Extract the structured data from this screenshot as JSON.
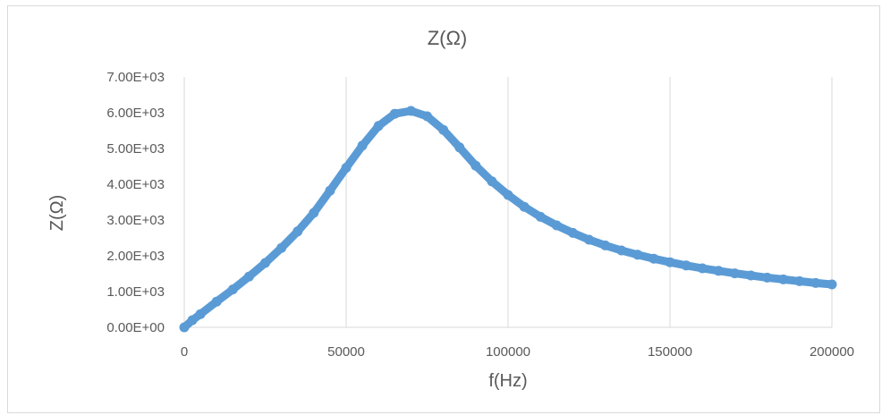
{
  "chart_data": {
    "type": "scatter",
    "title": "Z(Ω)",
    "xlabel": "f(Hz)",
    "ylabel": "Z(Ω)",
    "xlim": [
      0,
      200000
    ],
    "ylim": [
      0,
      7000
    ],
    "x_ticks": [
      0,
      50000,
      100000,
      150000,
      200000
    ],
    "x_tick_labels": [
      "0",
      "50000",
      "100000",
      "150000",
      "200000"
    ],
    "y_ticks": [
      0,
      1000,
      2000,
      3000,
      4000,
      5000,
      6000,
      7000
    ],
    "y_tick_labels": [
      "0.00E+00",
      "1.00E+03",
      "2.00E+03",
      "3.00E+03",
      "4.00E+03",
      "5.00E+03",
      "6.00E+03",
      "7.00E+03"
    ],
    "grid": "vertical",
    "legend": "none",
    "series": [
      {
        "color": "#5b9bd5",
        "points": [
          [
            0,
            0
          ],
          [
            2500,
            200
          ],
          [
            5000,
            370
          ],
          [
            10000,
            720
          ],
          [
            15000,
            1060
          ],
          [
            20000,
            1420
          ],
          [
            25000,
            1800
          ],
          [
            30000,
            2220
          ],
          [
            35000,
            2680
          ],
          [
            40000,
            3200
          ],
          [
            45000,
            3820
          ],
          [
            50000,
            4460
          ],
          [
            55000,
            5080
          ],
          [
            60000,
            5630
          ],
          [
            65000,
            5970
          ],
          [
            70000,
            6050
          ],
          [
            75000,
            5900
          ],
          [
            80000,
            5520
          ],
          [
            85000,
            5030
          ],
          [
            90000,
            4520
          ],
          [
            95000,
            4080
          ],
          [
            100000,
            3700
          ],
          [
            105000,
            3370
          ],
          [
            110000,
            3090
          ],
          [
            115000,
            2850
          ],
          [
            120000,
            2640
          ],
          [
            125000,
            2450
          ],
          [
            130000,
            2290
          ],
          [
            135000,
            2150
          ],
          [
            140000,
            2030
          ],
          [
            145000,
            1920
          ],
          [
            150000,
            1820
          ],
          [
            155000,
            1730
          ],
          [
            160000,
            1650
          ],
          [
            165000,
            1580
          ],
          [
            170000,
            1510
          ],
          [
            175000,
            1450
          ],
          [
            180000,
            1390
          ],
          [
            185000,
            1340
          ],
          [
            190000,
            1290
          ],
          [
            195000,
            1240
          ],
          [
            200000,
            1200
          ]
        ]
      }
    ]
  }
}
